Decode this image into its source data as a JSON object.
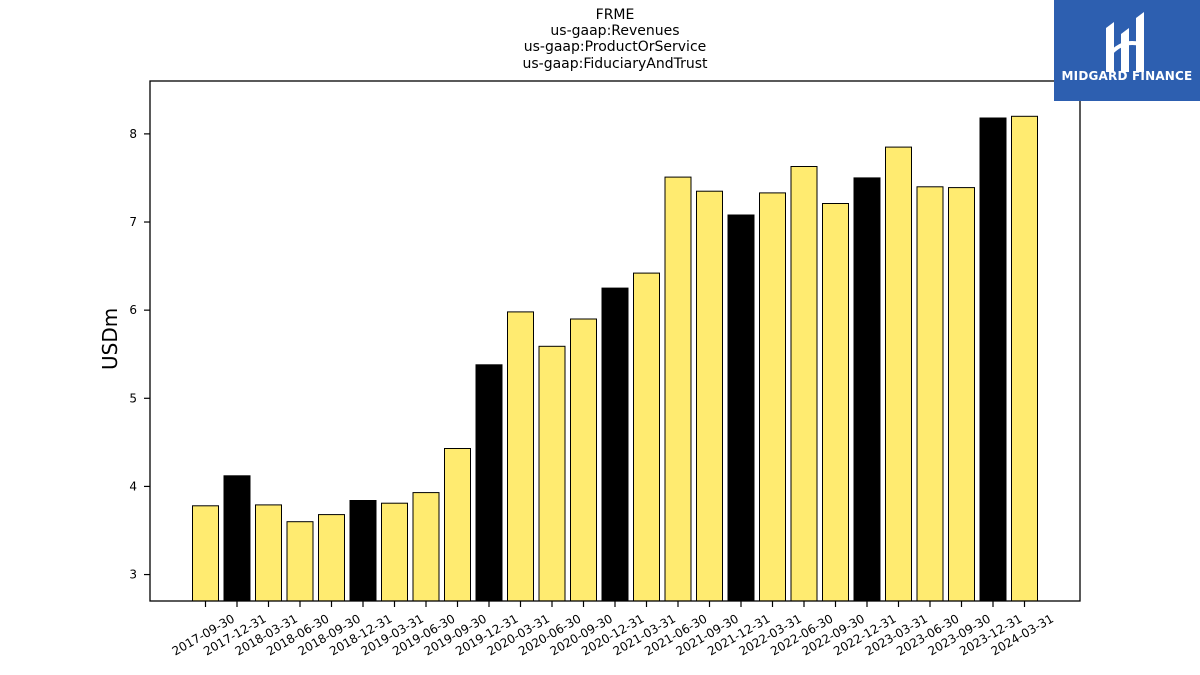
{
  "chart_data": {
    "type": "bar",
    "title_lines": [
      "FRME",
      "us-gaap:Revenues",
      "us-gaap:ProductOrService",
      "us-gaap:FiduciaryAndTrust"
    ],
    "ylabel": "USDm",
    "xlabel": "",
    "ylim": [
      2.7,
      8.6
    ],
    "yticks": [
      3,
      4,
      5,
      6,
      7,
      8
    ],
    "categories": [
      "2017-09-30",
      "2017-12-31",
      "2018-03-31",
      "2018-06-30",
      "2018-09-30",
      "2018-12-31",
      "2019-03-31",
      "2019-06-30",
      "2019-09-30",
      "2019-12-31",
      "2020-03-31",
      "2020-06-30",
      "2020-09-30",
      "2020-12-31",
      "2021-03-31",
      "2021-06-30",
      "2021-09-30",
      "2021-12-31",
      "2022-03-31",
      "2022-06-30",
      "2022-09-30",
      "2022-12-31",
      "2023-03-31",
      "2023-06-30",
      "2023-09-30",
      "2023-12-31",
      "2024-03-31"
    ],
    "values": [
      3.78,
      4.12,
      3.79,
      3.6,
      3.68,
      3.84,
      3.81,
      3.93,
      4.43,
      5.38,
      5.98,
      5.59,
      5.9,
      6.25,
      6.42,
      7.51,
      7.35,
      7.08,
      7.33,
      7.63,
      7.21,
      7.5,
      7.85,
      7.4,
      7.39,
      8.18,
      8.2
    ],
    "quarter_end_flags": [
      false,
      true,
      false,
      false,
      false,
      true,
      false,
      false,
      false,
      true,
      false,
      false,
      false,
      true,
      false,
      false,
      false,
      true,
      false,
      false,
      false,
      true,
      false,
      false,
      false,
      true,
      false
    ],
    "colors": {
      "quarter": "#ffeb70",
      "year_end": "#000000",
      "edge": "#000000"
    },
    "grid": false,
    "legend": "none"
  },
  "logo": {
    "text": "MIDGARD FINANCE",
    "background": "#2d5fb0"
  }
}
